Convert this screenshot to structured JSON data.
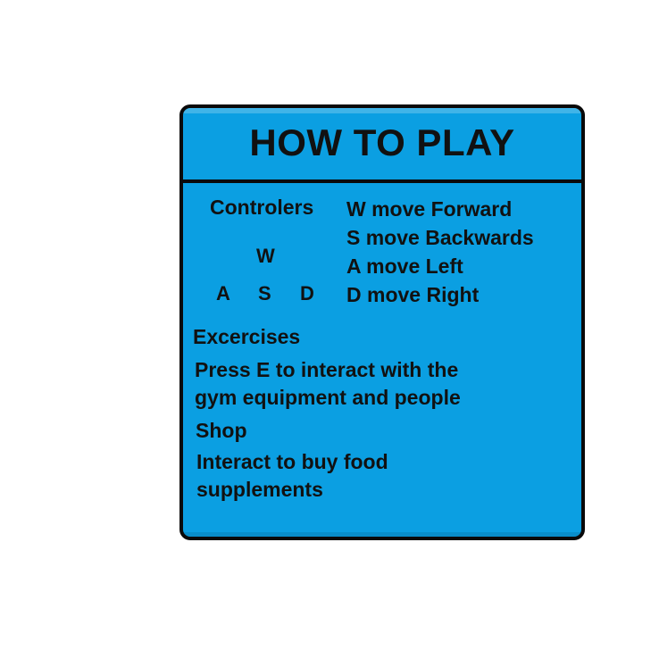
{
  "panel": {
    "title": "HOW TO PLAY",
    "background_color": "#0b9fe2",
    "border_color": "#0a0a0a"
  },
  "controls": {
    "heading": "Controlers",
    "keys": {
      "w": "W",
      "a": "A",
      "s": "S",
      "d": "D"
    },
    "instructions": [
      "W move Forward",
      "S move Backwards",
      "A move Left",
      "D move Right"
    ]
  },
  "exercises": {
    "heading": "Excercises",
    "text_line1": "Press E to interact with the",
    "text_line2": "gym equipment and people"
  },
  "shop": {
    "heading": "Shop",
    "text_line1": "Interact to buy food",
    "text_line2": "supplements"
  }
}
